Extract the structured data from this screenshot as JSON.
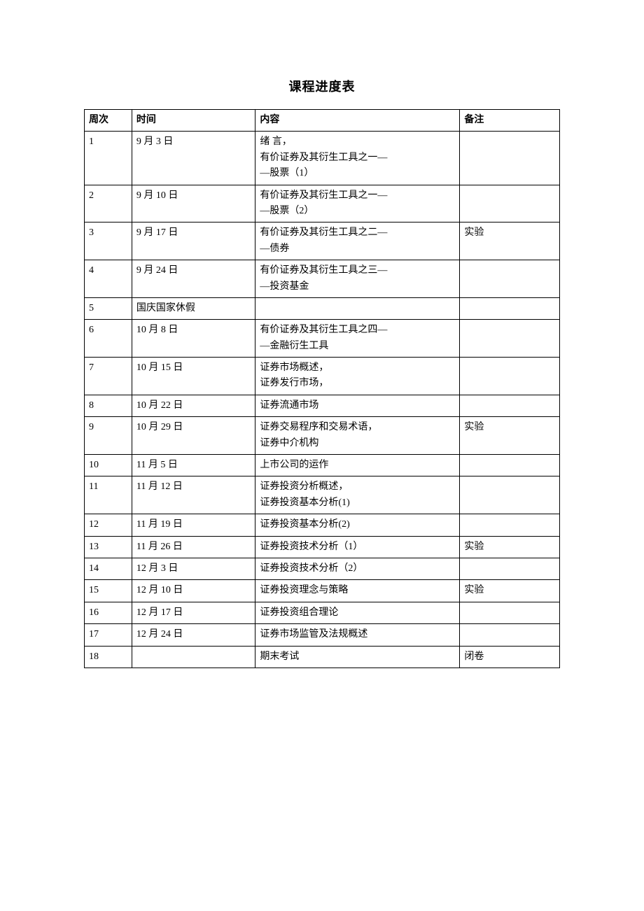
{
  "title": "课程进度表",
  "table": {
    "columns": [
      "周次",
      "时间",
      "内容",
      "备注"
    ],
    "rows": [
      {
        "week": "1",
        "time": "9 月 3 日",
        "content": "绪 言，\n有价证券及其衍生工具之一—\n—股票（1）",
        "note": ""
      },
      {
        "week": "2",
        "time": "9 月 10 日",
        "content": "有价证券及其衍生工具之一—\n—股票（2）",
        "note": ""
      },
      {
        "week": "3",
        "time": "9 月 17 日",
        "content": "有价证券及其衍生工具之二—\n—债券",
        "note": "实验"
      },
      {
        "week": "4",
        "time": "9 月 24 日",
        "content": "有价证券及其衍生工具之三—\n—投资基金",
        "note": ""
      },
      {
        "week": "5",
        "time": "国庆国家休假",
        "content": "",
        "note": ""
      },
      {
        "week": "6",
        "time": "10 月 8 日",
        "content": "有价证券及其衍生工具之四—\n—金融衍生工具",
        "note": ""
      },
      {
        "week": "7",
        "time": "10 月 15 日",
        "content": "证券市场概述，\n证券发行市场，",
        "note": ""
      },
      {
        "week": "8",
        "time": "10 月 22 日",
        "content": "证券流通市场",
        "note": ""
      },
      {
        "week": "9",
        "time": "10 月 29 日",
        "content": "证券交易程序和交易术语，\n证券中介机构",
        "note": "实验"
      },
      {
        "week": "10",
        "time": "11 月 5 日",
        "content": "上市公司的运作",
        "note": ""
      },
      {
        "week": "11",
        "time": "11 月 12 日",
        "content": "证券投资分析概述，\n证券投资基本分析(1)",
        "note": ""
      },
      {
        "week": "12",
        "time": "11 月 19 日",
        "content": "证券投资基本分析(2)",
        "note": ""
      },
      {
        "week": "13",
        "time": "11 月 26 日",
        "content": "证券投资技术分析（1）",
        "note": "实验"
      },
      {
        "week": "14",
        "time": "12 月 3 日",
        "content": "证券投资技术分析（2）",
        "note": ""
      },
      {
        "week": "15",
        "time": "12 月 10 日",
        "content": "证券投资理念与策略",
        "note": "实验"
      },
      {
        "week": "16",
        "time": "12 月 17 日",
        "content": "证券投资组合理论",
        "note": ""
      },
      {
        "week": "17",
        "time": "12 月 24 日",
        "content": "证券市场监管及法规概述",
        "note": ""
      },
      {
        "week": "18",
        "time": "",
        "content": "期末考试",
        "note": "闭卷"
      }
    ]
  },
  "styling": {
    "background_color": "#ffffff",
    "border_color": "#000000",
    "text_color": "#000000",
    "title_fontsize": 18,
    "body_fontsize": 14,
    "font_family": "SimSun"
  }
}
